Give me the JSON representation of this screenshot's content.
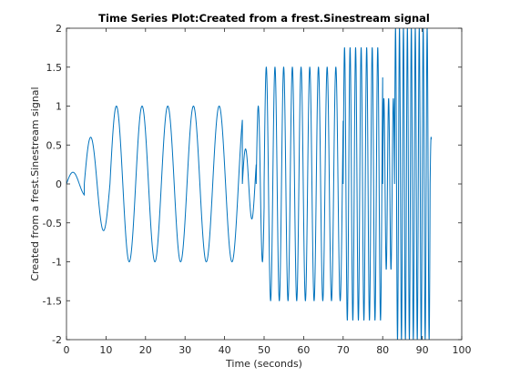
{
  "chart_data": {
    "type": "line",
    "title": "Time Series Plot:Created from a frest.Sinestream signal",
    "xlabel": "Time (seconds)",
    "ylabel": "Created from a frest.Sinestream signal",
    "xlim": [
      0,
      100
    ],
    "ylim": [
      -2,
      2
    ],
    "xticks": [
      0,
      10,
      20,
      30,
      40,
      50,
      60,
      70,
      80,
      90,
      100
    ],
    "yticks": [
      -2,
      -1.5,
      -1,
      -0.5,
      0,
      0.5,
      1,
      1.5,
      2
    ],
    "grid": false,
    "line_color": "#0072BD",
    "series": [
      {
        "segments": [
          {
            "t_start": 0,
            "t_end": 4.5,
            "amplitude": 0.15,
            "period": 6.5
          },
          {
            "t_start": 4.5,
            "t_end": 11,
            "amplitude": 0.6,
            "period": 6.5
          },
          {
            "t_start": 11,
            "t_end": 44.5,
            "amplitude": 1.0,
            "period": 6.5
          },
          {
            "t_start": 44.5,
            "t_end": 48,
            "amplitude": 0.45,
            "period": 3.2
          },
          {
            "t_start": 48,
            "t_end": 50,
            "amplitude": 1.0,
            "period": 2.1
          },
          {
            "t_start": 50,
            "t_end": 70,
            "amplitude": 1.5,
            "period": 2.2
          },
          {
            "t_start": 70,
            "t_end": 80,
            "amplitude": 1.75,
            "period": 1.4
          },
          {
            "t_start": 80,
            "t_end": 83,
            "amplitude": 1.1,
            "period": 1.2
          },
          {
            "t_start": 83,
            "t_end": 92,
            "amplitude": 2.0,
            "period": 1.0
          },
          {
            "t_start": 92,
            "t_end": 92.3,
            "amplitude": 0.6,
            "period": 1.0
          }
        ]
      }
    ]
  }
}
